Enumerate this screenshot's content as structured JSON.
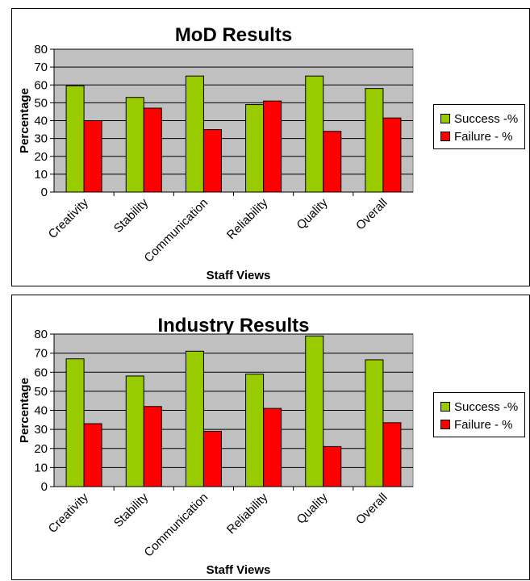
{
  "colors": {
    "success": "#99CC00",
    "failure": "#FF0000",
    "plot_bg": "#C0C0C0",
    "grid": "#000000"
  },
  "chart_data": [
    {
      "type": "bar",
      "title": "MoD Results",
      "xlabel": "Staff Views",
      "ylabel": "Percentage",
      "ylim": [
        0,
        80
      ],
      "yticks": [
        "0",
        "10",
        "20",
        "30",
        "40",
        "50",
        "60",
        "70",
        "80"
      ],
      "categories": [
        "Creativity",
        "Stability",
        "Communication",
        "Reliability",
        "Quality",
        "Overall"
      ],
      "series": [
        {
          "name": "Success -%",
          "values": [
            59.5,
            53,
            65,
            49,
            65,
            58
          ]
        },
        {
          "name": "Failure - %",
          "values": [
            40,
            47,
            35,
            51,
            34,
            41.5
          ]
        }
      ],
      "grid": true,
      "legend": "right"
    },
    {
      "type": "bar",
      "title": "Industry Results",
      "xlabel": "Staff Views",
      "ylabel": "Percentage",
      "ylim": [
        0,
        80
      ],
      "yticks": [
        "0",
        "10",
        "20",
        "30",
        "40",
        "50",
        "60",
        "70",
        "80"
      ],
      "categories": [
        "Creativity",
        "Stability",
        "Communication",
        "Reliability",
        "Quality",
        "Overall"
      ],
      "series": [
        {
          "name": "Success -%",
          "values": [
            67,
            58,
            71,
            59,
            79,
            66.5
          ]
        },
        {
          "name": "Failure - %",
          "values": [
            33,
            42,
            29,
            41,
            21,
            33.5
          ]
        }
      ],
      "grid": true,
      "legend": "right"
    }
  ]
}
